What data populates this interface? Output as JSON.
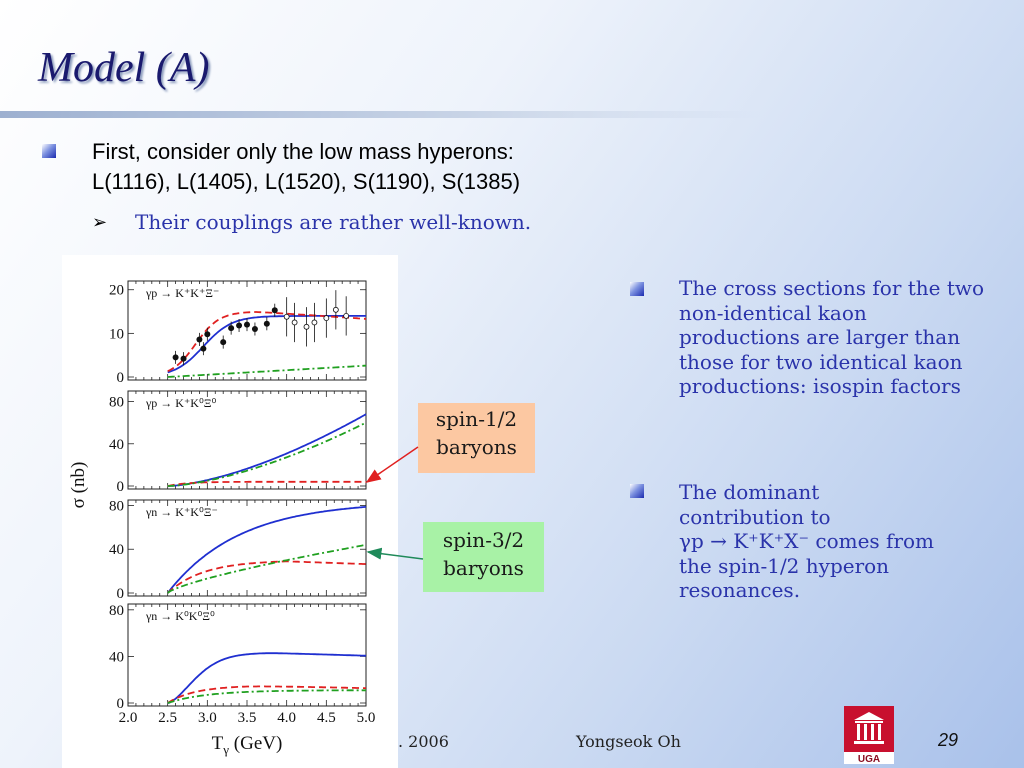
{
  "slide": {
    "title": "Model (A)",
    "bullet1": {
      "line1": "First, consider only the low mass hyperons:",
      "line2": "L(1116), L(1405), L(1520), S(1190), S(1385)"
    },
    "sub_bullet": {
      "arrow": "➢",
      "text": "Their couplings are rather well-known."
    },
    "figure": {
      "y_label": "σ (nb)",
      "x_label": "T",
      "x_label_sub": "γ",
      "x_label_unit": " (GeV)",
      "x_ticks": [
        "2.0",
        "2.5",
        "3.0",
        "3.5",
        "4.0",
        "4.5",
        "5.0"
      ],
      "panels": [
        {
          "reaction": "γp → K⁺K⁺Ξ⁻",
          "y_ticks": [
            "20",
            "10",
            "0"
          ]
        },
        {
          "reaction": "γp → K⁺K⁰Ξ⁰",
          "y_ticks": [
            "80",
            "40",
            "0"
          ]
        },
        {
          "reaction": "γn → K⁺K⁰Ξ⁻",
          "y_ticks": [
            "80",
            "40",
            "0"
          ]
        },
        {
          "reaction": "γn → K⁰K⁰Ξ⁰",
          "y_ticks": [
            "80",
            "40",
            "0"
          ]
        }
      ]
    },
    "callouts": {
      "spin_half": {
        "line1": "spin-1/2",
        "line2": "baryons"
      },
      "spin_three_half": {
        "line1": "spin-3/2",
        "line2": "baryons"
      }
    },
    "right_bullets": {
      "r1": "The cross sections for the two non-identical kaon productions are larger than those for two identical kaon productions: isospin factors",
      "r2_line1": "The dominant",
      "r2_line2": "contribution to",
      "r2_line3": "γp → K⁺K⁺Χ⁻ comes from",
      "r2_line4": "the spin-1/2 hyperon",
      "r2_line5": "resonances."
    },
    "footer": {
      "date": ". 2006",
      "author": "Yongseok Oh",
      "page": "29",
      "logo_text": "UGA"
    },
    "colors": {
      "title": "#1a1a6e",
      "body_blue": "#2a33aa",
      "curve_blue": "#1f2fd0",
      "curve_red": "#e02020",
      "curve_green": "#20a020",
      "callout_orange": "#fcc8a2",
      "callout_green": "#a8f2a6",
      "logo_red": "#c8102e"
    }
  }
}
